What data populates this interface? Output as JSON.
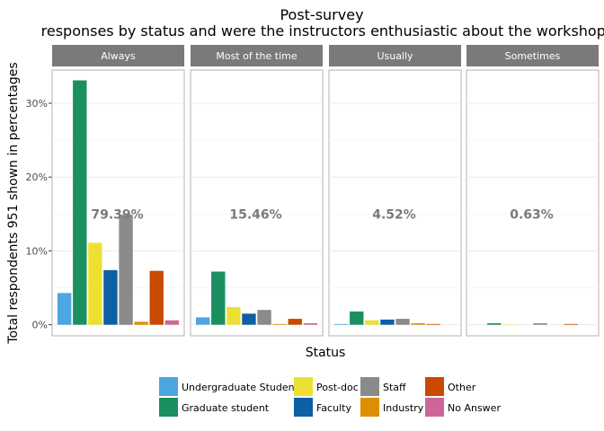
{
  "chart_data": {
    "type": "bar",
    "title": "Post-survey",
    "subtitle": "responses by status and were the instructors enthusiastic about the workshop?",
    "xlabel": "Status",
    "ylabel": "Total respondents 951 shown in percentages",
    "ylim": [
      -1.5,
      34.5
    ],
    "yticks": [
      0,
      10,
      20,
      30
    ],
    "ytick_labels": [
      "0%",
      "10%",
      "20%",
      "30%"
    ],
    "grid": true,
    "legend_position": "bottom",
    "categories": [
      "Undergraduate Student",
      "Graduate student",
      "Post-doc",
      "Faculty",
      "Staff",
      "Industry",
      "Other",
      "No Answer"
    ],
    "colors": [
      "#4da6e0",
      "#1a9060",
      "#ece133",
      "#0e5fa3",
      "#8a8a8a",
      "#dd8f00",
      "#c94a00",
      "#cc6699"
    ],
    "facets": [
      {
        "label": "Always",
        "total_label": "79.39%",
        "values": [
          4.3,
          33.1,
          11.1,
          7.4,
          14.9,
          0.4,
          7.3,
          0.6
        ]
      },
      {
        "label": "Most of the time",
        "total_label": "15.46%",
        "values": [
          1.0,
          7.2,
          2.4,
          1.5,
          2.0,
          0.1,
          0.8,
          0.2
        ]
      },
      {
        "label": "Usually",
        "total_label": "4.52%",
        "values": [
          0.1,
          1.8,
          0.6,
          0.7,
          0.8,
          0.2,
          0.1,
          0.0
        ]
      },
      {
        "label": "Sometimes",
        "total_label": "0.63%",
        "values": [
          0.0,
          0.2,
          0.05,
          0.0,
          0.2,
          0.0,
          0.1,
          0.0
        ]
      }
    ]
  }
}
